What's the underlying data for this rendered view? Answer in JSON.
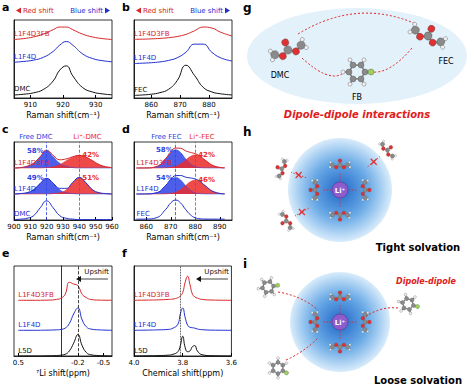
{
  "chart_data": [
    {
      "panel": "a",
      "type": "line",
      "x": [
        905,
        908,
        911,
        914,
        917,
        919,
        921,
        923,
        926,
        929,
        932,
        935
      ],
      "xlim": [
        905,
        935
      ],
      "xticks": [
        910,
        920,
        930
      ],
      "ylim": [
        0,
        10.5
      ],
      "tick_labels": "x",
      "grid": false,
      "x_label": "Raman shift(cm⁻¹)",
      "annotations": [
        {
          "text": "Red shift",
          "color": "#d62728"
        },
        {
          "text": "Blue shift",
          "color": "#1f2fd0"
        }
      ],
      "series": [
        {
          "name": "L1F4D3FB",
          "color": "#d62728",
          "values": [
            7.88,
            8.0,
            8.22,
            8.6,
            9.2,
            9.55,
            9.55,
            9.2,
            8.6,
            8.22,
            8.0,
            7.88
          ]
        },
        {
          "name": "L1F4D",
          "color": "#1f2fd0",
          "values": [
            4.82,
            4.92,
            5.1,
            5.48,
            6.28,
            7.11,
            7.6,
            7.11,
            5.94,
            5.32,
            5.03,
            4.88
          ]
        },
        {
          "name": "DMC",
          "color": "#111111",
          "values": [
            0.41,
            0.51,
            0.7,
            1.15,
            2.3,
            3.75,
            4.32,
            2.97,
            1.41,
            0.81,
            0.56,
            0.43
          ]
        }
      ]
    },
    {
      "panel": "b",
      "type": "line",
      "x": [
        854,
        857,
        860,
        863,
        866,
        869,
        872,
        875,
        878,
        881,
        884,
        888
      ],
      "xlim": [
        854,
        888
      ],
      "xticks": [
        860,
        870,
        880
      ],
      "ylim": [
        0,
        10.5
      ],
      "tick_labels": "x",
      "grid": false,
      "x_label": "Raman shift(cm⁻¹)",
      "annotations": [
        {
          "text": "Red shift",
          "color": "#d62728"
        },
        {
          "text": "Blue shift",
          "color": "#1f2fd0"
        }
      ],
      "series": [
        {
          "name": "L1F4D3FB",
          "color": "#d62728",
          "values": [
            7.9,
            7.92,
            7.96,
            8.02,
            8.12,
            8.28,
            8.56,
            9.05,
            9.55,
            9.42,
            8.86,
            8.35
          ]
        },
        {
          "name": "L1F4D",
          "color": "#1f2fd0",
          "values": [
            4.64,
            4.69,
            4.75,
            4.86,
            5.06,
            5.42,
            6.16,
            7.25,
            7.25,
            6.16,
            5.42,
            4.98
          ]
        },
        {
          "name": "FEC",
          "color": "#111111",
          "values": [
            0.35,
            0.41,
            0.51,
            0.72,
            1.17,
            2.35,
            4.41,
            3.04,
            1.44,
            0.82,
            0.57,
            0.41
          ]
        }
      ]
    },
    {
      "panel": "c",
      "type": "line",
      "x": [
        900,
        904,
        908,
        912,
        916,
        920,
        924,
        928,
        932,
        936,
        940,
        944,
        948,
        952,
        956,
        960
      ],
      "xlim": [
        900,
        960
      ],
      "xticks": [
        900,
        910,
        920,
        930,
        940,
        950,
        960
      ],
      "ylim": [
        0,
        9
      ],
      "tick_labels": "x",
      "grid": false,
      "x_label": "Raman shift(cm⁻¹)",
      "reference_lines": [
        {
          "x": 920,
          "label": "Free DMC",
          "color": "#2e43e6",
          "line_style": "dashed"
        },
        {
          "x": 940,
          "label": "Li⁺-DMC",
          "color": "#ec2a2a",
          "line_style": "dashed"
        }
      ],
      "series": [
        {
          "name": "L1F4D3FB",
          "color": "#d62728",
          "values": [
            6.0,
            6.05,
            6.2,
            6.55,
            7.3,
            8.05,
            7.45,
            6.95,
            7.05,
            7.3,
            7.45,
            7.25,
            6.85,
            6.4,
            6.15,
            6.05
          ],
          "components": [
            {
              "type": "area",
              "color": "#2e43e6",
              "share": 58,
              "share_label": "58%",
              "values": [
                6.0,
                6.05,
                6.2,
                6.55,
                7.3,
                8.0,
                7.3,
                6.55,
                6.2,
                6.05,
                6.0,
                6.0,
                6.0,
                6.0,
                6.0,
                6.0
              ]
            },
            {
              "type": "area",
              "color": "#ec2a2a",
              "share": 42,
              "share_label": "42%",
              "values": [
                6.0,
                6.0,
                6.0,
                6.0,
                6.0,
                6.05,
                6.15,
                6.4,
                6.85,
                7.25,
                7.45,
                7.25,
                6.85,
                6.4,
                6.15,
                6.05
              ]
            }
          ]
        },
        {
          "name": "L1F4D",
          "color": "#1f2fd0",
          "values": [
            3.0,
            3.05,
            3.15,
            3.5,
            4.2,
            4.8,
            4.25,
            3.65,
            3.65,
            4.35,
            4.9,
            4.3,
            3.5,
            3.15,
            3.05,
            3.0
          ],
          "components": [
            {
              "type": "area",
              "color": "#2e43e6",
              "share": 49,
              "share_label": "49%",
              "values": [
                3.0,
                3.05,
                3.15,
                3.5,
                4.2,
                4.8,
                4.2,
                3.5,
                3.15,
                3.05,
                3.0,
                3.0,
                3.0,
                3.0,
                3.0,
                3.0
              ]
            },
            {
              "type": "area",
              "color": "#ec2a2a",
              "share": 51,
              "share_label": "51%",
              "values": [
                3.0,
                3.0,
                3.0,
                3.0,
                3.0,
                3.0,
                3.05,
                3.15,
                3.5,
                4.3,
                4.9,
                4.3,
                3.5,
                3.15,
                3.05,
                3.0
              ]
            }
          ]
        },
        {
          "name": "DMC",
          "color": "#1f2fd0",
          "values": [
            0.05,
            0.1,
            0.2,
            0.5,
            1.4,
            2.2,
            1.4,
            0.5,
            0.2,
            0.1,
            0.05,
            0.05,
            0.05,
            0.05,
            0.05,
            0.05
          ]
        }
      ]
    },
    {
      "panel": "d",
      "type": "line",
      "x": [
        856,
        860,
        864,
        868,
        870,
        872,
        874,
        876,
        878,
        880,
        882,
        884,
        888,
        892
      ],
      "xlim": [
        855,
        895
      ],
      "xticks": [
        860,
        870,
        880,
        890
      ],
      "ylim": [
        0,
        9
      ],
      "tick_labels": "x",
      "grid": false,
      "x_label": "Raman shift(cm⁻¹)",
      "reference_lines": [
        {
          "x": 872,
          "label": "Free FEC",
          "color": "#2e43e6",
          "line_style": "dashed"
        },
        {
          "x": 880,
          "label": "Li⁺-FEC",
          "color": "#ec2a2a",
          "line_style": "dashed"
        }
      ],
      "series": [
        {
          "name": "L1F4D3FB",
          "color": "#d62728",
          "values": [
            6,
            6.01,
            6.15,
            7.11,
            7.87,
            8.3,
            8.27,
            7.99,
            7.8,
            7.65,
            7.36,
            6.91,
            6.2,
            6.02
          ],
          "components": [
            {
              "type": "area",
              "color": "#2e43e6",
              "share": 58,
              "share_label": "58%",
              "values": [
                6,
                6.01,
                6.15,
                7.09,
                7.79,
                8.1,
                7.79,
                7.09,
                6.48,
                6.15,
                6.04,
                6.01,
                6,
                6
              ]
            },
            {
              "type": "area",
              "color": "#ec2a2a",
              "share": 42,
              "share_label": "42%",
              "values": [
                6,
                6,
                6,
                6.02,
                6.08,
                6.2,
                6.48,
                6.9,
                7.32,
                7.5,
                7.32,
                6.9,
                6.2,
                6.02
              ]
            }
          ]
        },
        {
          "name": "L1F4D",
          "color": "#1f2fd0",
          "values": [
            3,
            3.01,
            3.13,
            4.01,
            4.7,
            5.11,
            5.13,
            4.95,
            4.85,
            4.73,
            4.45,
            3.97,
            3.21,
            3.02
          ],
          "components": [
            {
              "type": "area",
              "color": "#2e43e6",
              "share": 54,
              "share_label": "54%",
              "values": [
                3,
                3.01,
                3.13,
                3.99,
                4.62,
                4.9,
                4.62,
                3.99,
                3.44,
                3.13,
                3.04,
                3.01,
                3,
                3
              ]
            },
            {
              "type": "area",
              "color": "#ec2a2a",
              "share": 46,
              "share_label": "46%",
              "values": [
                3,
                3,
                3,
                3.02,
                3.08,
                3.21,
                3.51,
                3.96,
                4.41,
                4.6,
                4.41,
                3.96,
                3.21,
                3.02
              ]
            }
          ]
        },
        {
          "name": "FEC",
          "color": "#1f2fd0",
          "values": [
            0.1,
            0.11,
            0.25,
            1.24,
            1.97,
            2.3,
            1.97,
            1.24,
            0.61,
            0.25,
            0.14,
            0.11,
            0.1,
            0.1
          ]
        }
      ]
    },
    {
      "panel": "e",
      "type": "line",
      "x": [
        0.5,
        0.3,
        0.15,
        0.05,
        0,
        -0.05,
        -0.1,
        -0.15,
        -0.2,
        -0.25,
        -0.3,
        -0.35,
        -0.45,
        -0.6
      ],
      "xlim": [
        0.55,
        -0.6
      ],
      "xticks": [
        0.5,
        -0.2,
        -0.5
      ],
      "ylim": [
        0,
        10.5
      ],
      "tick_labels": "x",
      "grid": false,
      "x_label": "⁷Li shift(ppm)",
      "annotations": [
        {
          "text": "Upshift",
          "color": "#111111"
        }
      ],
      "reference_lines": [
        {
          "x": -0.2,
          "color": "#111111",
          "line_style": "dashed"
        }
      ],
      "series": [
        {
          "name": "L1F4D3FB",
          "color": "#d62728",
          "values": [
            6.5,
            6.5,
            6.52,
            6.6,
            6.75,
            7.2,
            8.6,
            8.4,
            8.2,
            7.2,
            6.8,
            6.6,
            6.52,
            6.5
          ]
        },
        {
          "name": "L1F4D",
          "color": "#1f2fd0",
          "values": [
            3,
            3,
            3.02,
            3.05,
            3.1,
            3.25,
            3.8,
            4.9,
            5.6,
            4.2,
            3.4,
            3.15,
            3.05,
            3
          ]
        },
        {
          "name": "L5D",
          "color": "#111111",
          "values": [
            0,
            0,
            0.02,
            0.05,
            0.1,
            0.2,
            0.6,
            1.5,
            2.5,
            1.2,
            0.4,
            0.15,
            0.05,
            0
          ]
        }
      ]
    },
    {
      "panel": "f",
      "type": "line",
      "x": [
        4.0,
        3.95,
        3.9,
        3.86,
        3.84,
        3.82,
        3.81,
        3.8,
        3.79,
        3.78,
        3.77,
        3.76,
        3.75,
        3.74,
        3.72,
        3.68,
        3.6
      ],
      "xlim": [
        4.0,
        3.6
      ],
      "xticks": [
        {
          "value": 4,
          "label": "4.0"
        },
        3.8,
        3.6
      ],
      "ylim": [
        0,
        10.5
      ],
      "tick_labels": "x",
      "grid": false,
      "x_label": "Chemical shift(ppm)",
      "annotations": [
        {
          "text": "Upshift",
          "color": "#111111"
        }
      ],
      "reference_lines": [
        {
          "x": 3.81,
          "color": "#111111",
          "line_style": "dotted"
        }
      ],
      "series": [
        {
          "name": "L1F4D3FB",
          "color": "#d62728",
          "values": [
            6.5,
            6.52,
            6.55,
            6.6,
            6.65,
            6.8,
            7.0,
            7.4,
            8.6,
            9.3,
            8.3,
            7.2,
            6.9,
            6.75,
            6.6,
            6.53,
            6.5
          ]
        },
        {
          "name": "L1F4D",
          "color": "#1f2fd0",
          "values": [
            3,
            3.02,
            3.05,
            3.1,
            3.25,
            3.7,
            4.9,
            5.6,
            4.5,
            3.6,
            3.35,
            3.3,
            3.25,
            3.15,
            3.07,
            3.02,
            3
          ]
        },
        {
          "name": "L5D",
          "color": "#111111",
          "values": [
            0,
            0.02,
            0.05,
            0.1,
            0.2,
            0.5,
            1.2,
            2.3,
            1.0,
            0.5,
            0.6,
            1.1,
            1.2,
            0.6,
            0.15,
            0.03,
            0
          ]
        }
      ]
    }
  ],
  "diagrams": [
    {
      "panel": "g",
      "molecules": [
        "DMC",
        "FEC",
        "FB"
      ],
      "caption": "Dipole-dipole interactions",
      "color": "#e02020"
    },
    {
      "panel": "h",
      "center": "Li⁺",
      "caption": "Tight solvation"
    },
    {
      "panel": "i",
      "center": "Li⁺",
      "note": "Dipole-dipole",
      "caption": "Loose solvation",
      "color": "#e02020"
    }
  ]
}
